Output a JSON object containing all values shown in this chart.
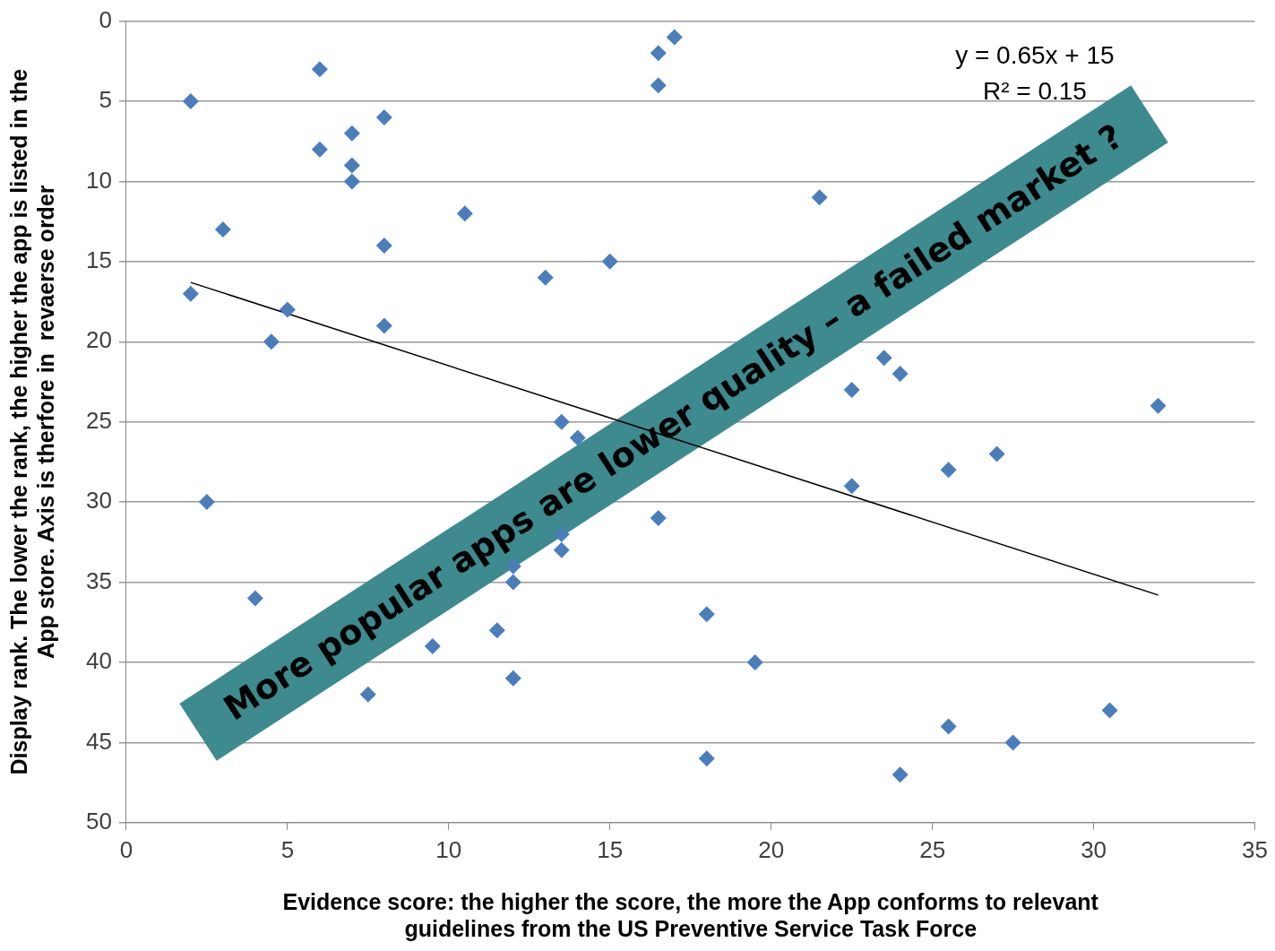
{
  "chart_data": {
    "type": "scatter",
    "xlabel": "Evidence score: the higher the score, the more the App conforms to relevant\nguidelines from the US Preventive Service Task Force",
    "ylabel": "Display rank. The lower the rank, the higher the app is listed in the\nApp store. Axis is therfore in  revaerse order",
    "annotations": [
      "y = 0.65x + 15",
      "R² = 0.15",
      "More popular apps are lower quality – a failed market ?"
    ],
    "series": [
      {
        "color": "#4a7ebb",
        "marker": "diamond",
        "x": [
          2,
          6,
          8,
          6,
          7,
          7,
          7,
          3,
          8,
          10.5,
          2,
          5,
          4.5,
          8,
          13,
          15,
          16.5,
          17,
          16.5,
          21.5,
          23.5,
          24,
          22.5,
          32,
          13.5,
          14,
          27,
          25.5,
          22.5,
          2.5,
          16.5,
          13.5,
          13.5,
          12,
          12,
          4,
          18,
          11.5,
          9.5,
          19.5,
          12,
          7.5,
          30.5,
          25.5,
          27.5,
          18,
          24
        ],
        "values": [
          5,
          3,
          6,
          8,
          7,
          9,
          10,
          13,
          14,
          12,
          17,
          18,
          20,
          19,
          16,
          15,
          2,
          1,
          4,
          11,
          21,
          22,
          23,
          24,
          25,
          26,
          27,
          28,
          29,
          30,
          31,
          32,
          33,
          34,
          35,
          36,
          37,
          38,
          39,
          40,
          41,
          42,
          43,
          44,
          45,
          46,
          47
        ]
      },
      {
        "type": "line",
        "color": "#000000",
        "marker": "none",
        "x": [
          2,
          32
        ],
        "values": [
          16.3,
          35.8
        ]
      }
    ],
    "xlim": [
      0,
      35
    ],
    "xticks": [
      0,
      5,
      10,
      15,
      20,
      25,
      30,
      35
    ],
    "ylim": [
      50,
      0
    ],
    "yticks": [
      0,
      5,
      10,
      15,
      20,
      25,
      30,
      35,
      40,
      45,
      50
    ],
    "grid": "y",
    "legend": false
  }
}
